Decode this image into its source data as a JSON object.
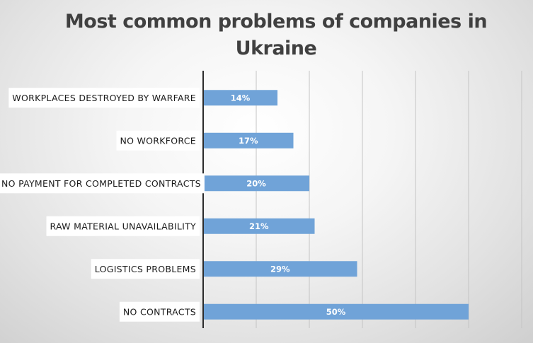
{
  "chart_data": {
    "type": "bar",
    "orientation": "horizontal",
    "title": "Most common problems of companies in Ukraine",
    "categories": [
      "WORKPLACES DESTROYED BY WARFARE",
      "NO WORKFORCE",
      "NO PAYMENT FOR COMPLETED CONTRACTS",
      "RAW MATERIAL UNAVAILABILITY",
      "LOGISTICS PROBLEMS",
      "NO CONTRACTS"
    ],
    "values": [
      14,
      17,
      20,
      21,
      29,
      50
    ],
    "value_labels": [
      "14%",
      "17%",
      "20%",
      "21%",
      "29%",
      "50%"
    ],
    "xlim": [
      0,
      60
    ],
    "grid": true,
    "legend": "none",
    "bar_color": "#70a3d8",
    "label_color": "#ffffff"
  }
}
